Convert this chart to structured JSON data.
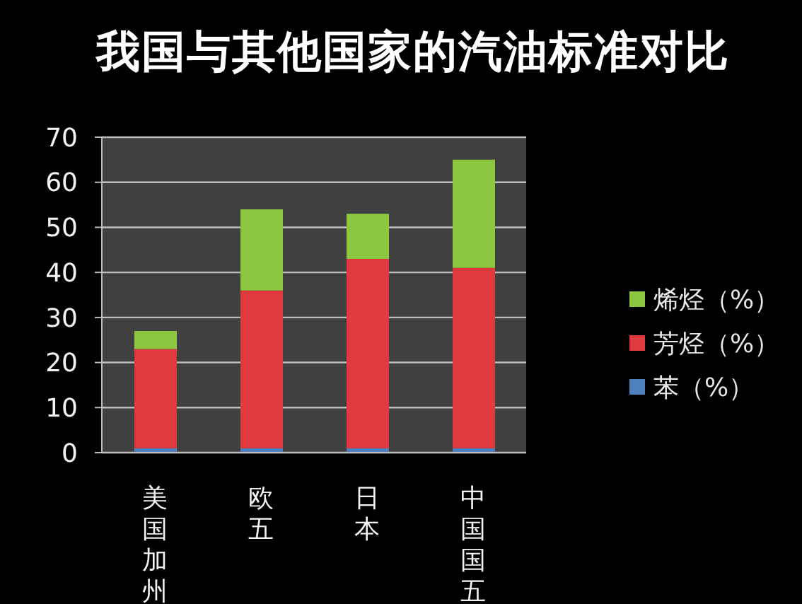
{
  "chart_data": {
    "type": "bar",
    "title": "我国与其他国家的汽油标准对比",
    "categories": [
      "美国加州",
      "欧五",
      "日本",
      "中国国五"
    ],
    "stacked": true,
    "series": [
      {
        "name": "苯（%）",
        "color": "#4f81bd",
        "values": [
          1,
          1,
          1,
          1
        ]
      },
      {
        "name": "芳烃（%）",
        "color": "#e03a3e",
        "values": [
          22,
          35,
          42,
          40
        ]
      },
      {
        "name": "烯烃（%）",
        "color": "#8dc63f",
        "values": [
          4,
          18,
          10,
          24
        ]
      }
    ],
    "ylim": [
      0,
      70
    ],
    "yticks": [
      0,
      10,
      20,
      30,
      40,
      50,
      60,
      70
    ],
    "grid": "y",
    "legend": "right"
  }
}
